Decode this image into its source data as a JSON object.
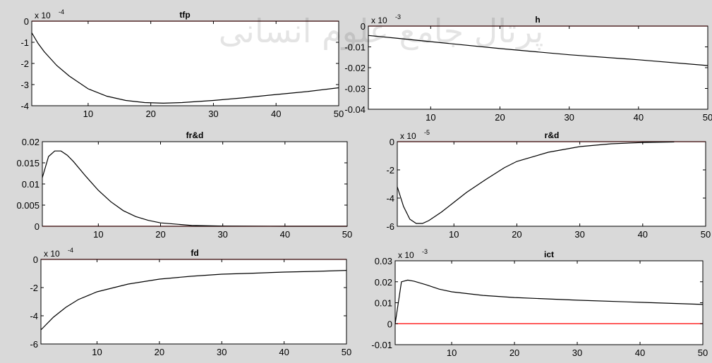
{
  "watermark": "پرتال جامع علوم انسانی",
  "chart_data": [
    {
      "id": "tfp",
      "type": "line",
      "title": "tfp",
      "exponent": "x 10",
      "exponent_power": "-4",
      "xlim": [
        1,
        50
      ],
      "ylim": [
        -4,
        0
      ],
      "xticks": [
        10,
        20,
        30,
        40,
        50
      ],
      "yticks": [
        0,
        -1,
        -2,
        -3,
        -4
      ],
      "ytick_labels": [
        "0",
        "-1",
        "-2",
        "-3",
        "-4"
      ],
      "reference_line": 0,
      "line_color": "#000000",
      "ref_color": "#ff0000",
      "x": [
        1,
        2,
        3,
        5,
        7,
        10,
        13,
        16,
        19,
        22,
        25,
        30,
        35,
        40,
        45,
        50
      ],
      "y": [
        -0.55,
        -1.05,
        -1.45,
        -2.1,
        -2.6,
        -3.2,
        -3.55,
        -3.75,
        -3.85,
        -3.88,
        -3.85,
        -3.75,
        -3.62,
        -3.47,
        -3.33,
        -3.15
      ]
    },
    {
      "id": "h",
      "type": "line",
      "title": "h",
      "exponent": "x 10",
      "exponent_power": "-3",
      "xlim": [
        1,
        50
      ],
      "ylim": [
        -0.04,
        0
      ],
      "xticks": [
        10,
        20,
        30,
        40,
        50
      ],
      "yticks": [
        0,
        -0.01,
        -0.02,
        -0.03,
        -0.04
      ],
      "ytick_labels": [
        "0",
        "-0.01",
        "-0.02",
        "-0.03",
        "-0.04"
      ],
      "reference_line": 0,
      "line_color": "#000000",
      "ref_color": "#ff0000",
      "x": [
        1,
        5,
        10,
        20,
        30,
        40,
        50
      ],
      "y": [
        -0.0045,
        -0.0058,
        -0.0075,
        -0.0108,
        -0.0138,
        -0.0162,
        -0.019
      ]
    },
    {
      "id": "frd",
      "type": "line",
      "title": "fr&d",
      "exponent": "",
      "exponent_power": "",
      "xlim": [
        1,
        50
      ],
      "ylim": [
        0,
        0.02
      ],
      "xticks": [
        10,
        20,
        30,
        40,
        50
      ],
      "yticks": [
        0.02,
        0.015,
        0.01,
        0.005,
        0
      ],
      "ytick_labels": [
        "0.02",
        "0.015",
        "0.01",
        "0.005",
        "0"
      ],
      "reference_line": 0,
      "line_color": "#000000",
      "ref_color": "#ff0000",
      "x": [
        1,
        2,
        3,
        4,
        5,
        6,
        8,
        10,
        12,
        14,
        16,
        18,
        20,
        25,
        30,
        40,
        50
      ],
      "y": [
        0.0115,
        0.0165,
        0.0178,
        0.0178,
        0.0168,
        0.0153,
        0.0118,
        0.0085,
        0.0058,
        0.0037,
        0.0023,
        0.0014,
        0.0008,
        0.0002,
        5e-05,
        0,
        0
      ]
    },
    {
      "id": "rd",
      "type": "line",
      "title": "r&d",
      "exponent": "x 10",
      "exponent_power": "-5",
      "xlim": [
        1,
        50
      ],
      "ylim": [
        -6,
        0
      ],
      "xticks": [
        10,
        20,
        30,
        40,
        50
      ],
      "yticks": [
        0,
        -2,
        -4,
        -6
      ],
      "ytick_labels": [
        "0",
        "-2",
        "-4",
        "-6"
      ],
      "reference_line": 0,
      "line_color": "#000000",
      "ref_color": "#ff0000",
      "x": [
        1,
        2,
        3,
        4,
        5,
        6,
        8,
        10,
        12,
        15,
        18,
        20,
        25,
        30,
        35,
        40,
        45
      ],
      "y": [
        -3.2,
        -4.6,
        -5.5,
        -5.8,
        -5.8,
        -5.6,
        -5.0,
        -4.3,
        -3.6,
        -2.7,
        -1.85,
        -1.4,
        -0.75,
        -0.35,
        -0.15,
        -0.06,
        -0.02
      ]
    },
    {
      "id": "fd",
      "type": "line",
      "title": "fd",
      "exponent": "x 10",
      "exponent_power": "-4",
      "xlim": [
        1,
        50
      ],
      "ylim": [
        -6,
        0
      ],
      "xticks": [
        10,
        20,
        30,
        40,
        50
      ],
      "yticks": [
        0,
        -2,
        -4,
        -6
      ],
      "ytick_labels": [
        "0",
        "-2",
        "-4",
        "-6"
      ],
      "reference_line": 0,
      "line_color": "#000000",
      "ref_color": "#ff0000",
      "x": [
        1,
        3,
        5,
        7,
        10,
        15,
        20,
        25,
        30,
        35,
        40,
        45,
        50
      ],
      "y": [
        -5.0,
        -4.1,
        -3.4,
        -2.85,
        -2.3,
        -1.75,
        -1.4,
        -1.2,
        -1.05,
        -0.98,
        -0.9,
        -0.85,
        -0.78
      ]
    },
    {
      "id": "ict",
      "type": "line",
      "title": "ict",
      "exponent": "x 10",
      "exponent_power": "-3",
      "xlim": [
        1,
        50
      ],
      "ylim": [
        -0.01,
        0.03
      ],
      "xticks": [
        10,
        20,
        30,
        40,
        50
      ],
      "yticks": [
        0.03,
        0.02,
        0.01,
        0,
        -0.01
      ],
      "ytick_labels": [
        "0.03",
        "0.02",
        "0.01",
        "0",
        "-0.01"
      ],
      "reference_line": 0,
      "line_color": "#000000",
      "ref_color": "#ff0000",
      "x": [
        1,
        2,
        3,
        4,
        6,
        8,
        10,
        15,
        20,
        30,
        40,
        50
      ],
      "y": [
        0.0,
        0.02,
        0.0208,
        0.0203,
        0.0185,
        0.0165,
        0.0152,
        0.0135,
        0.0125,
        0.0112,
        0.0102,
        0.0092
      ]
    }
  ]
}
